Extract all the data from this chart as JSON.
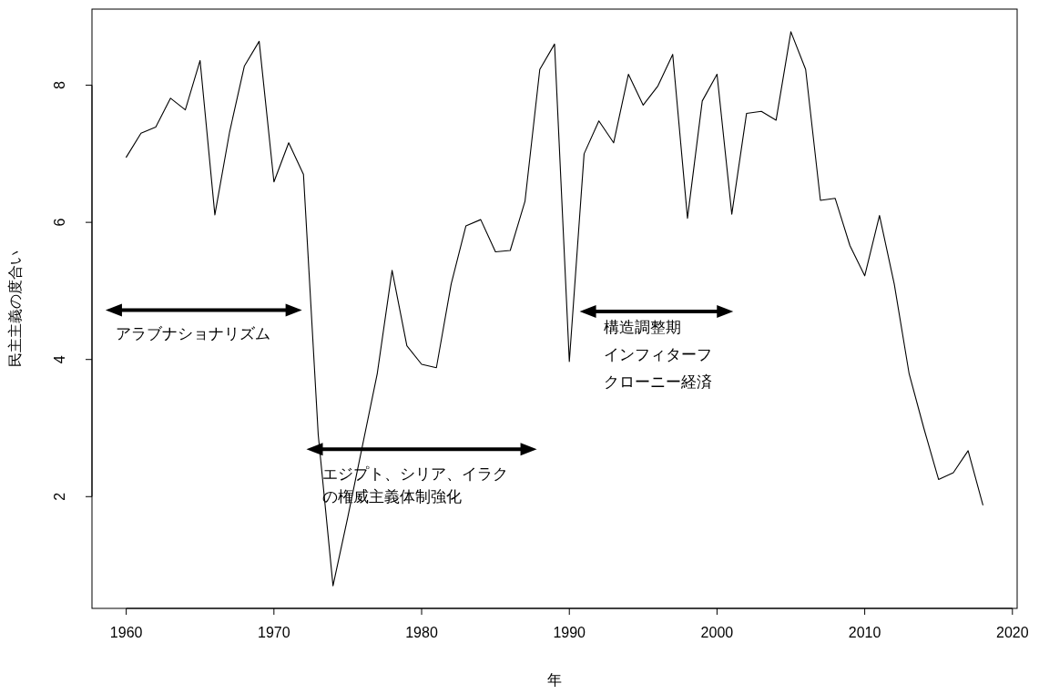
{
  "chart_data": {
    "type": "line",
    "xlabel": "年",
    "ylabel": "民主主義の度合い",
    "x": [
      1960,
      1961,
      1962,
      1963,
      1964,
      1965,
      1966,
      1967,
      1968,
      1969,
      1970,
      1971,
      1972,
      1973,
      1974,
      1975,
      1976,
      1977,
      1978,
      1979,
      1980,
      1981,
      1982,
      1983,
      1984,
      1985,
      1986,
      1987,
      1988,
      1989,
      1990,
      1991,
      1992,
      1993,
      1994,
      1995,
      1996,
      1997,
      1998,
      1999,
      2000,
      2001,
      2002,
      2003,
      2004,
      2005,
      2006,
      2007,
      2008,
      2009,
      2010,
      2011,
      2012,
      2013,
      2014,
      2015,
      2016,
      2017,
      2018
    ],
    "series": [
      {
        "color": "#000000",
        "values": [
          6.95,
          7.3,
          7.39,
          7.81,
          7.64,
          8.36,
          6.11,
          7.32,
          8.28,
          8.64,
          6.59,
          7.16,
          6.7,
          2.9,
          0.7,
          1.7,
          2.75,
          3.8,
          5.3,
          4.2,
          3.93,
          3.88,
          5.1,
          5.95,
          6.04,
          5.57,
          5.59,
          6.31,
          8.23,
          8.6,
          3.97,
          7.0,
          7.48,
          7.16,
          8.16,
          7.71,
          7.99,
          8.45,
          6.06,
          7.77,
          8.16,
          6.12,
          7.59,
          7.62,
          7.49,
          8.78,
          8.23,
          6.32,
          6.35,
          5.66,
          5.22,
          6.1,
          5.1,
          3.8,
          3.0,
          2.25,
          2.35,
          2.67,
          1.88
        ]
      }
    ],
    "xlim": [
      1957.68,
      2020.32
    ],
    "ylim": [
      0.37,
      9.11
    ],
    "xticks": [
      1960,
      1970,
      1980,
      1990,
      2000,
      2010,
      2020
    ],
    "yticks": [
      2,
      4,
      6,
      8
    ],
    "annotations": [
      "アラブナショナリズム",
      "エジプト、シリア、イラク",
      "の権威主義体制強化",
      "構造調整期",
      "インフィターフ",
      "クローニー経済"
    ]
  }
}
